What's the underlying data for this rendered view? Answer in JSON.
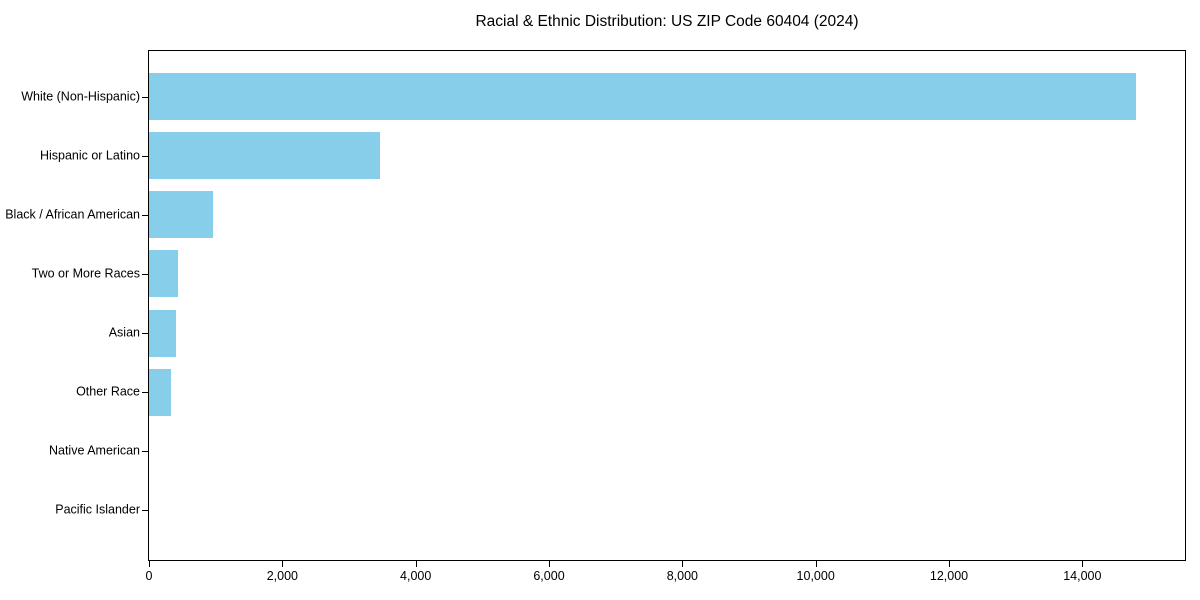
{
  "chart_data": {
    "type": "bar",
    "orientation": "horizontal",
    "title": "Racial & Ethnic Distribution: US ZIP Code 60404 (2024)",
    "categories": [
      "White (Non-Hispanic)",
      "Hispanic or Latino",
      "Black / African American",
      "Two or More Races",
      "Asian",
      "Other Race",
      "Native American",
      "Pacific Islander"
    ],
    "values": [
      14800,
      3460,
      960,
      440,
      410,
      330,
      0,
      0
    ],
    "xlabel": "",
    "ylabel": "",
    "xlim": [
      0,
      15540
    ],
    "xticks": [
      {
        "value": 0,
        "label": "0"
      },
      {
        "value": 2000,
        "label": "2,000"
      },
      {
        "value": 4000,
        "label": "4,000"
      },
      {
        "value": 6000,
        "label": "6,000"
      },
      {
        "value": 8000,
        "label": "8,000"
      },
      {
        "value": 10000,
        "label": "10,000"
      },
      {
        "value": 12000,
        "label": "12,000"
      },
      {
        "value": 14000,
        "label": "14,000"
      }
    ],
    "grid": false,
    "legend": "none",
    "bar_color": "#87CEEB",
    "spine_color": "#000000",
    "background_color": "#ffffff",
    "category_axis_inverted_top_to_bottom": true
  }
}
